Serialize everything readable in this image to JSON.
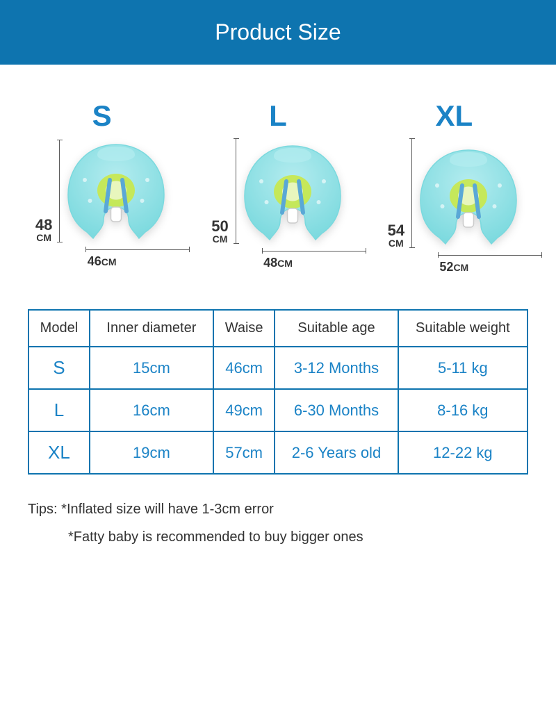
{
  "colors": {
    "header_bg": "#0e74af",
    "accent": "#1b83c6",
    "table_border": "#0e74af",
    "float_body": "#7ad9de",
    "float_light": "#b4ecef",
    "float_inner": "#c9e84a",
    "float_strap": "#5aa8d6"
  },
  "header": {
    "title": "Product Size"
  },
  "products": [
    {
      "label": "S",
      "height_num": "48",
      "height_unit": "CM",
      "width": "46",
      "width_unit": "CM"
    },
    {
      "label": "L",
      "height_num": "50",
      "height_unit": "CM",
      "width": "48",
      "width_unit": "CM"
    },
    {
      "label": "XL",
      "height_num": "54",
      "height_unit": "CM",
      "width": "52",
      "width_unit": "CM"
    }
  ],
  "table": {
    "headers": [
      "Model",
      "Inner diameter",
      "Waise",
      "Suitable age",
      "Suitable weight"
    ],
    "rows": [
      {
        "model": "S",
        "inner": "15cm",
        "waise": "46cm",
        "age": "3-12 Months",
        "weight": "5-11 kg"
      },
      {
        "model": "L",
        "inner": "16cm",
        "waise": "49cm",
        "age": "6-30 Months",
        "weight": "8-16 kg"
      },
      {
        "model": "XL",
        "inner": "19cm",
        "waise": "57cm",
        "age": "2-6 Years old",
        "weight": "12-22 kg"
      }
    ]
  },
  "tips": {
    "label": "Tips:",
    "line1": "*Inflated size will have 1-3cm error",
    "line2": "*Fatty baby is recommended to buy bigger ones"
  }
}
